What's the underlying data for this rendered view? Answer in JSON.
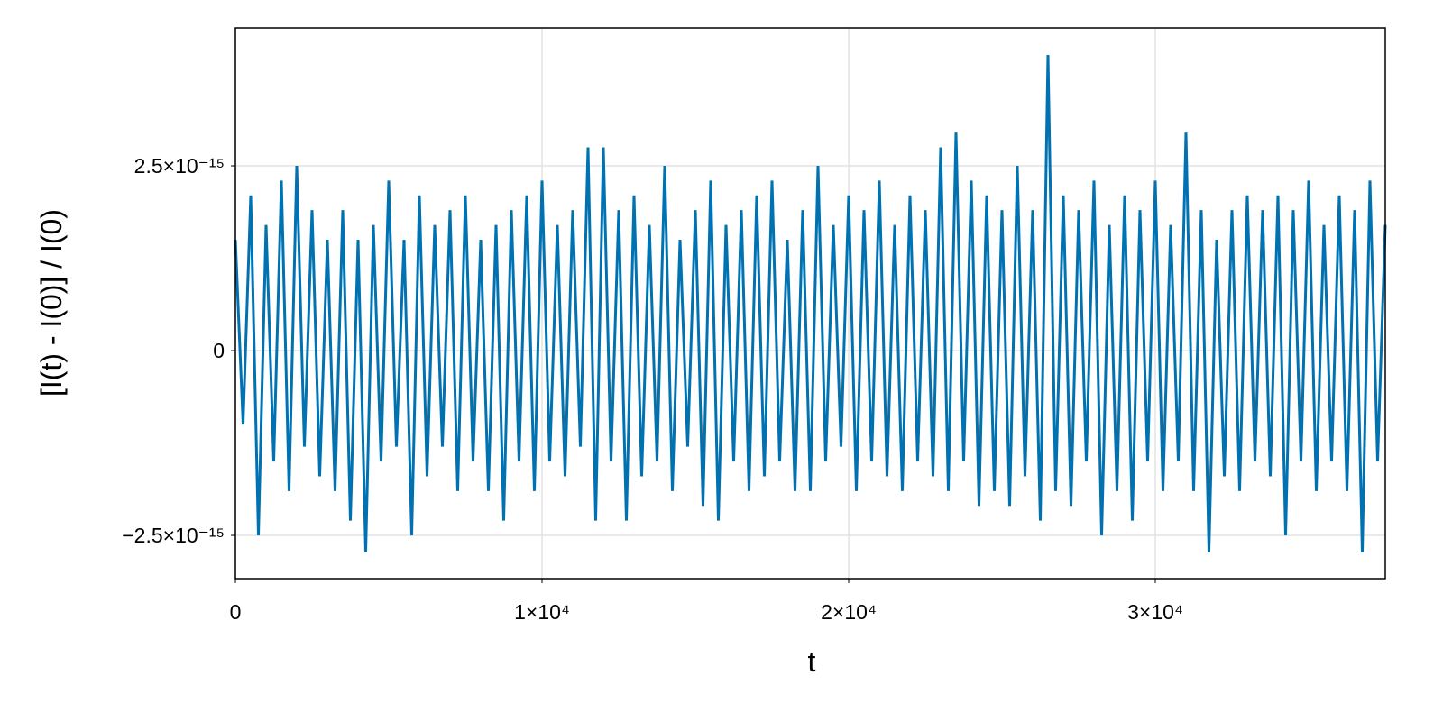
{
  "chart_data": {
    "type": "line",
    "xlabel": "t",
    "ylabel": "[I(t) - I(0)] / I(0)",
    "xlim": [
      0,
      37500
    ],
    "ylim": [
      -3.085e-15,
      4.366e-15
    ],
    "xticks": [
      0,
      {
        "value": 10000,
        "label": "1×10⁴"
      },
      {
        "value": 20000,
        "label": "2×10⁴"
      },
      {
        "value": 30000,
        "label": "3×10⁴"
      }
    ],
    "yticks": [
      {
        "value": -2.5e-15,
        "label": "−2.5×10⁻¹⁵"
      },
      0,
      {
        "value": 2.5e-15,
        "label": "2.5×10⁻¹⁵"
      }
    ],
    "grid": true,
    "series": [
      {
        "color": "#0072b2",
        "x": [
          0,
          250,
          500,
          750,
          1000,
          1250,
          1500,
          1750,
          2000,
          2250,
          2500,
          2750,
          3000,
          3250,
          3500,
          3750,
          4000,
          4250,
          4500,
          4750,
          5000,
          5250,
          5500,
          5750,
          6000,
          6250,
          6500,
          6750,
          7000,
          7250,
          7500,
          7750,
          8000,
          8250,
          8500,
          8750,
          9000,
          9250,
          9500,
          9750,
          10000,
          10250,
          10500,
          10750,
          11000,
          11250,
          11500,
          11750,
          12000,
          12250,
          12500,
          12750,
          13000,
          13250,
          13500,
          13750,
          14000,
          14250,
          14500,
          14750,
          15000,
          15250,
          15500,
          15750,
          16000,
          16250,
          16500,
          16750,
          17000,
          17250,
          17500,
          17750,
          18000,
          18250,
          18500,
          18750,
          19000,
          19250,
          19500,
          19750,
          20000,
          20250,
          20500,
          20750,
          21000,
          21250,
          21500,
          21750,
          22000,
          22250,
          22500,
          22750,
          23000,
          23250,
          23500,
          23750,
          24000,
          24250,
          24500,
          24750,
          25000,
          25250,
          25500,
          25750,
          26000,
          26250,
          26500,
          26750,
          27000,
          27250,
          27500,
          27750,
          28000,
          28250,
          28500,
          28750,
          29000,
          29250,
          29500,
          29750,
          30000,
          30250,
          30500,
          30750,
          31000,
          31250,
          31500,
          31750,
          32000,
          32250,
          32500,
          32750,
          33000,
          33250,
          33500,
          33750,
          34000,
          34250,
          34500,
          34750,
          35000,
          35250,
          35500,
          35750,
          36000,
          36250,
          36500,
          36750,
          37000,
          37250,
          37500
        ],
        "values": [
          1.5e-15,
          -1e-15,
          2.1e-15,
          -2.5e-15,
          1.7e-15,
          -1.5e-15,
          2.3e-15,
          -1.9e-15,
          2.5e-15,
          -1.3e-15,
          1.9e-15,
          -1.7e-15,
          1.5e-15,
          -1.9e-15,
          1.9e-15,
          -2.3e-15,
          1.5e-15,
          -2.73e-15,
          1.7e-15,
          -1.5e-15,
          2.3e-15,
          -1.3e-15,
          1.5e-15,
          -2.5e-15,
          2.1e-15,
          -1.7e-15,
          1.7e-15,
          -1.3e-15,
          1.9e-15,
          -1.9e-15,
          2.1e-15,
          -1.5e-15,
          1.5e-15,
          -1.9e-15,
          1.7e-15,
          -2.3e-15,
          1.9e-15,
          -1.5e-15,
          2.1e-15,
          -1.9e-15,
          2.3e-15,
          -1.5e-15,
          1.7e-15,
          -1.7e-15,
          1.9e-15,
          -1.3e-15,
          2.75e-15,
          -2.3e-15,
          2.75e-15,
          -1.5e-15,
          1.9e-15,
          -2.3e-15,
          2.1e-15,
          -1.7e-15,
          1.7e-15,
          -1.5e-15,
          2.5e-15,
          -1.9e-15,
          1.5e-15,
          -1.3e-15,
          1.9e-15,
          -2.1e-15,
          2.3e-15,
          -2.3e-15,
          1.7e-15,
          -1.5e-15,
          1.9e-15,
          -1.9e-15,
          2.1e-15,
          -1.7e-15,
          2.3e-15,
          -1.5e-15,
          1.5e-15,
          -1.9e-15,
          1.9e-15,
          -1.9e-15,
          2.5e-15,
          -1.5e-15,
          1.7e-15,
          -1.3e-15,
          2.1e-15,
          -1.9e-15,
          1.9e-15,
          -1.5e-15,
          2.3e-15,
          -1.7e-15,
          1.7e-15,
          -1.9e-15,
          2.1e-15,
          -1.5e-15,
          1.9e-15,
          -1.7e-15,
          2.75e-15,
          -1.9e-15,
          2.95e-15,
          -1.5e-15,
          2.3e-15,
          -2.1e-15,
          2.1e-15,
          -1.9e-15,
          1.9e-15,
          -2.1e-15,
          2.5e-15,
          -1.7e-15,
          1.9e-15,
          -2.3e-15,
          4e-15,
          -1.9e-15,
          2.1e-15,
          -2.1e-15,
          1.9e-15,
          -1.5e-15,
          2.3e-15,
          -2.5e-15,
          1.7e-15,
          -1.9e-15,
          2.1e-15,
          -2.3e-15,
          1.9e-15,
          -1.5e-15,
          2.3e-15,
          -1.9e-15,
          1.7e-15,
          -1.5e-15,
          2.95e-15,
          -1.9e-15,
          1.9e-15,
          -2.73e-15,
          1.5e-15,
          -1.7e-15,
          1.9e-15,
          -1.9e-15,
          2.1e-15,
          -1.5e-15,
          1.9e-15,
          -1.7e-15,
          2.1e-15,
          -2.5e-15,
          1.9e-15,
          -1.5e-15,
          2.3e-15,
          -1.9e-15,
          1.7e-15,
          -1.5e-15,
          2.1e-15,
          -1.9e-15,
          1.9e-15,
          -2.73e-15,
          2.3e-15,
          -1.5e-15,
          1.7e-15
        ]
      }
    ]
  }
}
